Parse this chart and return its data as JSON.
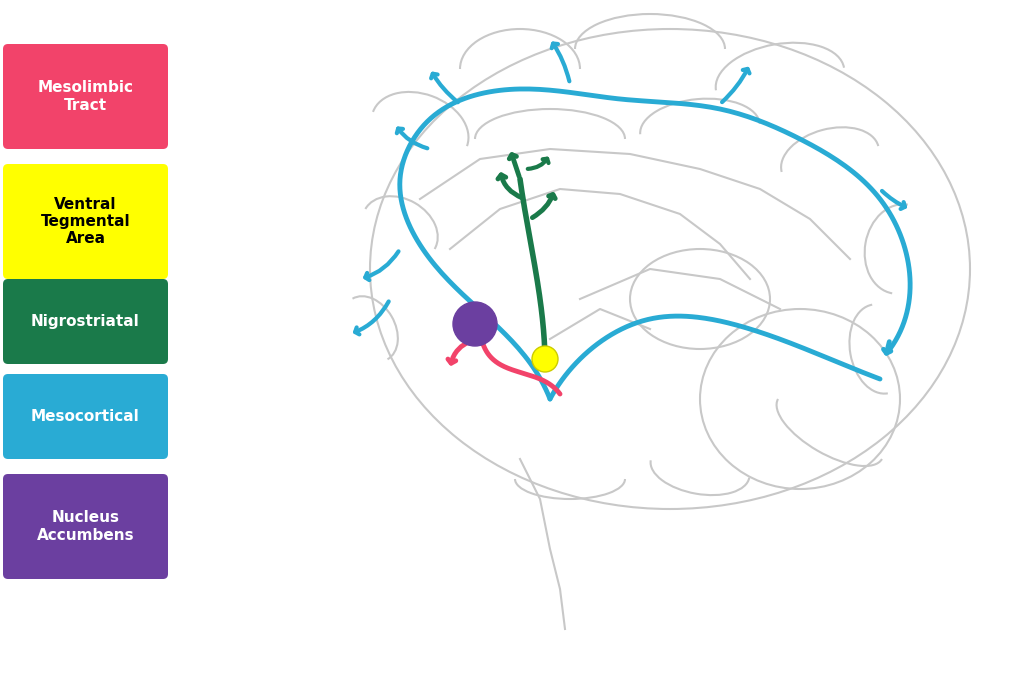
{
  "bg_color": "#ffffff",
  "legend_items": [
    {
      "label": "Mesolimbic\nTract",
      "color": "#F2436A",
      "text_color": "#ffffff",
      "fontweight": "bold"
    },
    {
      "label": "Ventral\nTegmental\nArea",
      "color": "#FFFF00",
      "text_color": "#000000",
      "fontweight": "bold"
    },
    {
      "label": "Nigrostriatal",
      "color": "#1A7A4A",
      "text_color": "#ffffff",
      "fontweight": "bold"
    },
    {
      "label": "Mesocortical",
      "color": "#29ABD4",
      "text_color": "#ffffff",
      "fontweight": "bold"
    },
    {
      "label": "Nucleus\nAccumbens",
      "color": "#6B3FA0",
      "text_color": "#ffffff",
      "fontweight": "bold"
    }
  ],
  "blue_color": "#29ABD4",
  "pink_color": "#F2436A",
  "green_color": "#1A7A4A",
  "purple_dot_color": "#6B3FA0",
  "yellow_dot_color": "#FFFF00",
  "brain_color": "#c8c8c8"
}
